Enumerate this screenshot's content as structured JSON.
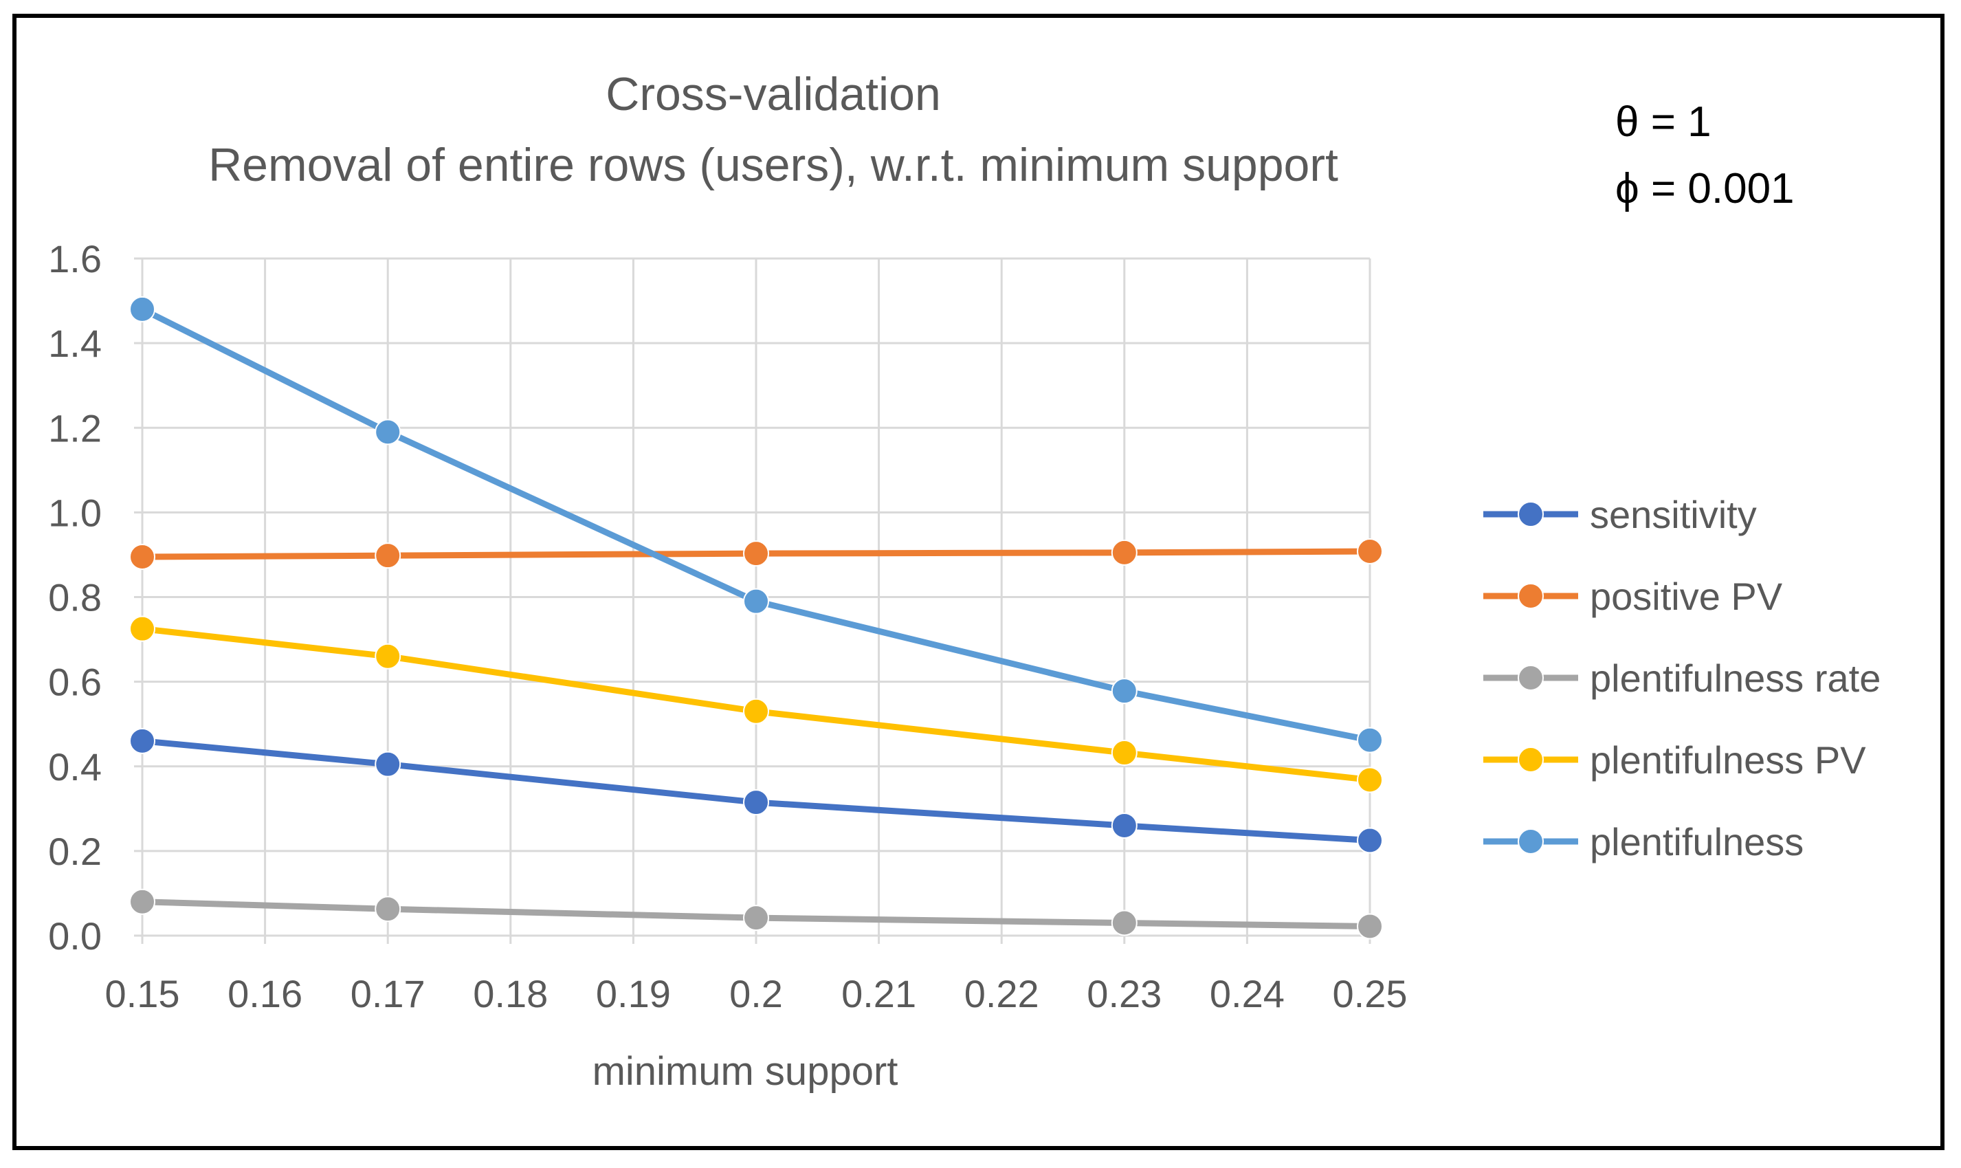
{
  "chart_data": {
    "type": "line",
    "title": "Cross-validation",
    "subtitle": "Removal of entire rows (users), w.r.t. minimum support",
    "annotations": [
      "θ = 1",
      "ϕ = 0.001"
    ],
    "xlabel": "minimum support",
    "ylabel": "",
    "xlim": [
      0.15,
      0.25
    ],
    "ylim": [
      0,
      1.6
    ],
    "x_ticks": [
      0.15,
      0.16,
      0.17,
      0.18,
      0.19,
      0.2,
      0.21,
      0.22,
      0.23,
      0.24,
      0.25
    ],
    "x_tick_labels": [
      "0.15",
      "0.16",
      "0.17",
      "0.18",
      "0.19",
      "0.2",
      "0.21",
      "0.22",
      "0.23",
      "0.24",
      "0.25"
    ],
    "y_ticks": [
      0,
      0.2,
      0.4,
      0.6,
      0.8,
      1.0,
      1.2,
      1.4,
      1.6
    ],
    "y_tick_labels": [
      "0.0",
      "0.2",
      "0.4",
      "0.6",
      "0.8",
      "1.0",
      "1.2",
      "1.4",
      "1.6"
    ],
    "grid": true,
    "legend_position": "right",
    "x": [
      0.15,
      0.17,
      0.2,
      0.23,
      0.25
    ],
    "series": [
      {
        "name": "sensitivity",
        "color": "#4472C4",
        "values": [
          0.46,
          0.405,
          0.315,
          0.26,
          0.225
        ]
      },
      {
        "name": "positive PV",
        "color": "#ED7D31",
        "values": [
          0.895,
          0.898,
          0.903,
          0.905,
          0.908
        ]
      },
      {
        "name": "plentifulness rate",
        "color": "#A5A5A5",
        "values": [
          0.08,
          0.063,
          0.042,
          0.03,
          0.022
        ]
      },
      {
        "name": "plentifulness PV",
        "color": "#FFC000",
        "values": [
          0.725,
          0.66,
          0.53,
          0.432,
          0.368
        ]
      },
      {
        "name": "plentifulness",
        "color": "#5B9BD5",
        "values": [
          1.48,
          1.19,
          0.79,
          0.578,
          0.462
        ]
      }
    ]
  }
}
